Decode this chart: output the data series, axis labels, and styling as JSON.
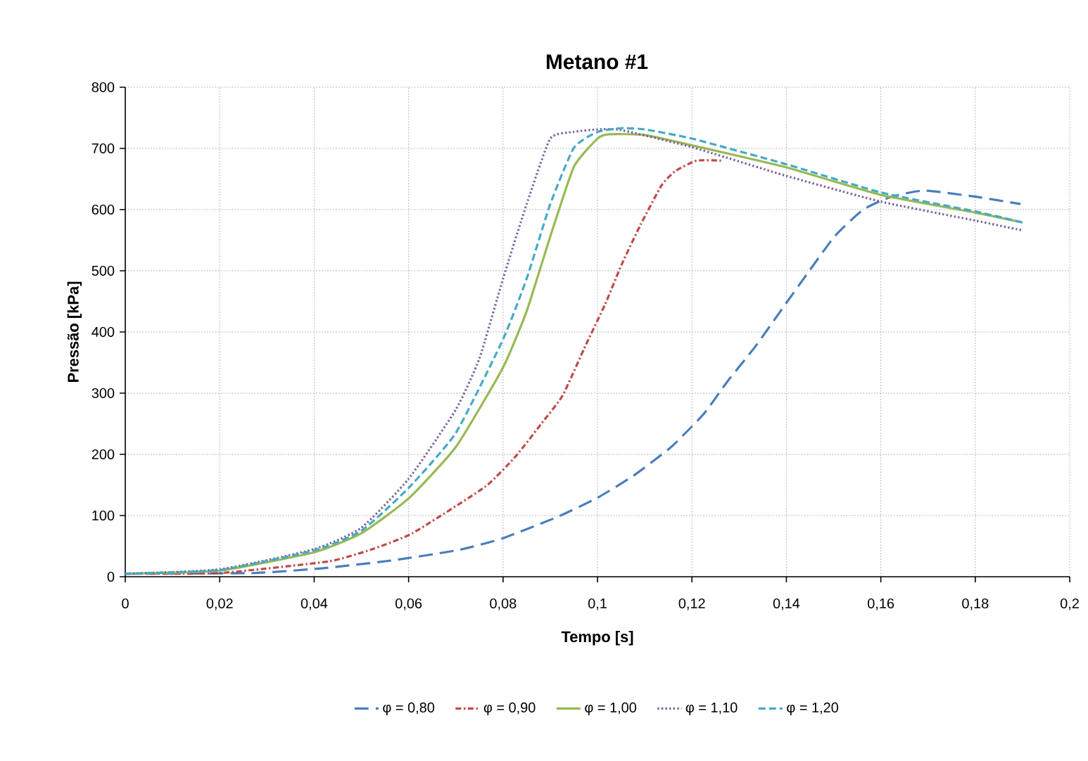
{
  "chart_data": {
    "type": "line",
    "title": "Metano #1",
    "xlabel": "Tempo [s]",
    "ylabel": "Pressão [kPa]",
    "xlim": [
      0,
      0.2
    ],
    "ylim": [
      0,
      800
    ],
    "xticks": [
      0,
      {
        "value": 0.02,
        "label": "0,02"
      },
      {
        "value": 0.04,
        "label": "0,04"
      },
      {
        "value": 0.06,
        "label": "0,06"
      },
      {
        "value": 0.08,
        "label": "0,08"
      },
      {
        "value": 0.1,
        "label": "0,1"
      },
      {
        "value": 0.12,
        "label": "0,12"
      },
      {
        "value": 0.14,
        "label": "0,14"
      },
      {
        "value": 0.16,
        "label": "0,16"
      },
      {
        "value": 0.18,
        "label": "0,18"
      },
      {
        "value": 0.2,
        "label": "0,2"
      }
    ],
    "yticks": [
      0,
      100,
      200,
      300,
      400,
      500,
      600,
      700,
      800
    ],
    "grid": true,
    "legend": "bottom",
    "marker": "none",
    "series": [
      {
        "name": "φ = 0,80",
        "color": "#4a7ebb",
        "line_style": "long dashed",
        "x": [
          0,
          0.0271,
          0.042,
          0.0569,
          0.0708,
          0.08,
          0.0916,
          0.1,
          0.1076,
          0.1156,
          0.1225,
          0.1275,
          0.1334,
          0.1394,
          0.1444,
          0.1503,
          0.1563,
          0.1622,
          0.1692,
          0.1801,
          0.1896
        ],
        "values": [
          5,
          6,
          14,
          27,
          44,
          63,
          98,
          129,
          165,
          212,
          266,
          319,
          376,
          441,
          495,
          557,
          600,
          621,
          631,
          621,
          609
        ]
      },
      {
        "name": "φ = 0,90",
        "color": "#be4b48",
        "line_style": "dashdot",
        "x": [
          0,
          0.02,
          0.043,
          0.0519,
          0.0608,
          0.0762,
          0.0827,
          0.0881,
          0.0926,
          0.0976,
          0.1016,
          0.1051,
          0.1091,
          0.1136,
          0.1165,
          0.121,
          0.1264
        ],
        "values": [
          5,
          6,
          25,
          44,
          71,
          147,
          197,
          250,
          296,
          380,
          445,
          510,
          575,
          640,
          663,
          680,
          680
        ]
      },
      {
        "name": "φ = 1,00",
        "color": "#98b954",
        "line_style": "solid",
        "x": [
          0,
          0.02,
          0.04,
          0.05,
          0.06,
          0.07,
          0.08,
          0.085,
          0.09,
          0.095,
          0.1,
          0.1025,
          0.11,
          0.12,
          0.14,
          0.16,
          0.18,
          0.19
        ],
        "values": [
          5,
          10,
          40,
          71,
          128,
          212,
          342,
          434,
          556,
          670,
          716,
          723,
          722,
          705,
          669,
          624,
          595,
          579
        ]
      },
      {
        "name": "φ = 1,10",
        "color": "#7d60a0",
        "line_style": "dotted",
        "x": [
          0,
          0.02,
          0.04,
          0.05,
          0.06,
          0.07,
          0.075,
          0.08,
          0.085,
          0.09,
          0.095,
          0.1,
          0.105,
          0.12,
          0.14,
          0.16,
          0.18,
          0.19
        ],
        "values": [
          5,
          12,
          45,
          80,
          160,
          273,
          357,
          487,
          609,
          716,
          727,
          731,
          730,
          702,
          655,
          613,
          582,
          566
        ]
      },
      {
        "name": "φ = 1,20",
        "color": "#46aac5",
        "line_style": "dashed",
        "x": [
          0,
          0.02,
          0.04,
          0.05,
          0.06,
          0.07,
          0.08,
          0.085,
          0.09,
          0.095,
          0.1,
          0.105,
          0.11,
          0.12,
          0.14,
          0.16,
          0.18,
          0.19
        ],
        "values": [
          5,
          11,
          43,
          75,
          145,
          235,
          388,
          487,
          609,
          701,
          727,
          733,
          731,
          716,
          674,
          628,
          597,
          579
        ]
      }
    ]
  }
}
